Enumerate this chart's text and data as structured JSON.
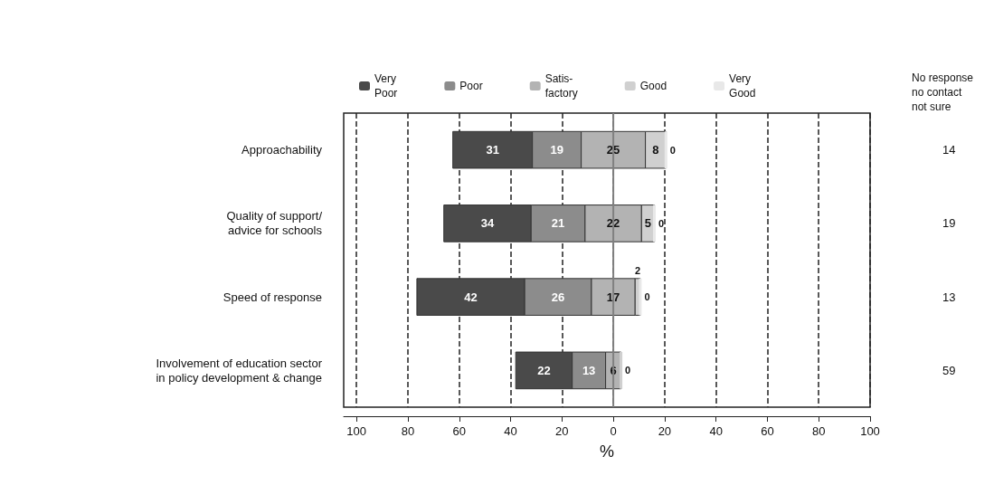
{
  "chart_data": {
    "type": "bar",
    "orientation": "horizontal",
    "xlabel": "%",
    "categories": [
      "Approachability",
      "Quality of support/\nadvice for schools",
      "Speed of response",
      "Involvement of education sector\nin policy development & change"
    ],
    "y2_categories": [
      "14",
      "19",
      "13",
      "59"
    ],
    "annotations": [
      "No response\nno contact\nnot sure"
    ],
    "series": [
      {
        "name": "Very\nPoor",
        "color": "#4a4a4a",
        "values": [
          31,
          34,
          42,
          22
        ],
        "base": [
          -62.5,
          -66,
          -76.5,
          -38
        ]
      },
      {
        "name": "Poor",
        "color": "#8c8c8c",
        "values": [
          19,
          21,
          26,
          13
        ],
        "base": [
          -31.5,
          -32,
          -34.5,
          -16
        ]
      },
      {
        "name": "Satis-\nfactory",
        "color": "#b3b3b3",
        "values": [
          25,
          22,
          17,
          6
        ],
        "base": [
          -12.5,
          -11,
          -8.5,
          -3
        ]
      },
      {
        "name": "Good",
        "color": "#d0d0d0",
        "values": [
          8,
          5,
          2,
          0
        ],
        "base": [
          12.5,
          11,
          8.5,
          3
        ]
      },
      {
        "name": "Very\nGood",
        "color": "#e8e8e8",
        "values": [
          0,
          0,
          0,
          null
        ],
        "base": [
          20.5,
          16,
          10.5,
          null
        ]
      }
    ],
    "data_labels": true,
    "xlim": [
      -105,
      100
    ],
    "xticks": [
      {
        "value": -100,
        "label": "100"
      },
      {
        "value": -80,
        "label": "80"
      },
      {
        "value": -60,
        "label": "60"
      },
      {
        "value": -40,
        "label": "40"
      },
      {
        "value": -20,
        "label": "20"
      },
      0,
      20,
      40,
      60,
      80,
      100
    ],
    "ref_lines": [
      {
        "axis": "x",
        "value": 0,
        "color": "#808080"
      }
    ],
    "grid": "x",
    "line_style": "dashed",
    "legend": "top"
  }
}
